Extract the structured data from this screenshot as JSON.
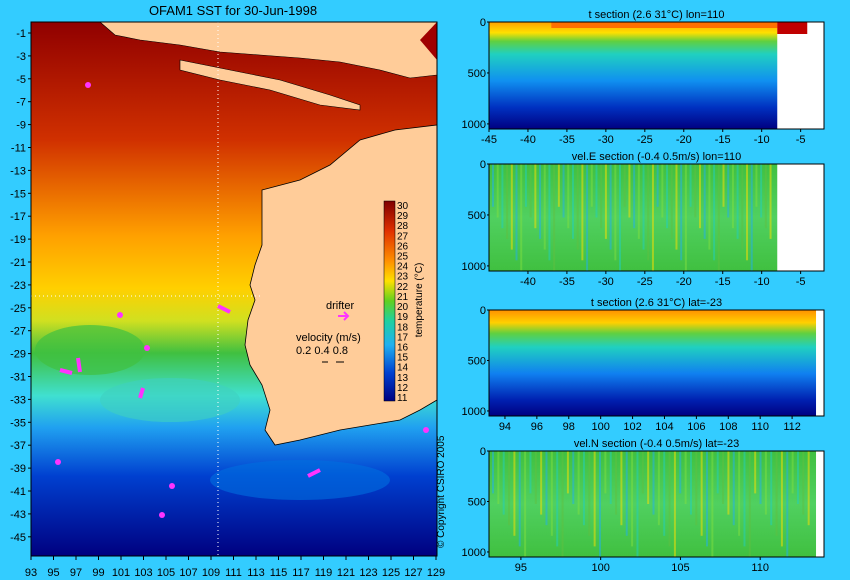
{
  "colors": {
    "background": "#33ccff",
    "land": "#ffcc99",
    "sst_scale": [
      "#000080",
      "#0020c0",
      "#0050e0",
      "#0090f0",
      "#20c0f0",
      "#40e0d0",
      "#40d080",
      "#40c040",
      "#90d020",
      "#e0e020",
      "#ffd000",
      "#ffa000",
      "#ff7000",
      "#e84000",
      "#c02000",
      "#900000"
    ],
    "drifter": "#ff33ff"
  },
  "map": {
    "title": "OFAM1 SST for 30-Jun-1998",
    "lat_ticks": [
      "-1",
      "-3",
      "-5",
      "-7",
      "-9",
      "-11",
      "-13",
      "-15",
      "-17",
      "-19",
      "-21",
      "-23",
      "-25",
      "-27",
      "-29",
      "-31",
      "-33",
      "-35",
      "-37",
      "-39",
      "-41",
      "-43",
      "-45"
    ],
    "lon_ticks": [
      "93",
      "95",
      "97",
      "99",
      "101",
      "103",
      "105",
      "107",
      "109",
      "111",
      "113",
      "115",
      "117",
      "119",
      "121",
      "123",
      "125",
      "127",
      "129"
    ],
    "colorbar_ticks": [
      "30",
      "29",
      "28",
      "27",
      "26",
      "25",
      "24",
      "23",
      "22",
      "21",
      "20",
      "19",
      "18",
      "17",
      "16",
      "15",
      "14",
      "13",
      "12",
      "11"
    ],
    "colorbar_label": "temperature (°C)",
    "drifter_label": "drifter",
    "velocity_label": "velocity (m/s)",
    "velocity_values": "0.2 0.4 0.8",
    "copyright": "© Copyright CSIRO 2005"
  },
  "chart_data": [
    {
      "type": "heatmap",
      "title": "t section (2.6      31°C) lon=110",
      "x": [
        -45,
        -40,
        -35,
        -30,
        -25,
        -20,
        -15,
        -10,
        -5
      ],
      "xlim": [
        -45,
        -2
      ],
      "y_ticks": [
        0,
        500,
        1000
      ],
      "ylim": [
        0,
        1050
      ],
      "colorbar_range": [
        2.6,
        31
      ],
      "data_end_x": -8
    },
    {
      "type": "heatmap",
      "title": "vel.E section (-0.4      0.5m/s) lon=110",
      "x": [
        -40,
        -35,
        -30,
        -25,
        -20,
        -15,
        -10,
        -5
      ],
      "xlim": [
        -45,
        -2
      ],
      "y_ticks": [
        0,
        500,
        1000
      ],
      "ylim": [
        0,
        1050
      ],
      "colorbar_range": [
        -0.4,
        0.5
      ],
      "data_end_x": -8
    },
    {
      "type": "heatmap",
      "title": "t section (2.6      31°C) lat=-23",
      "x": [
        94,
        96,
        98,
        100,
        102,
        104,
        106,
        108,
        110,
        112
      ],
      "xlim": [
        93,
        114
      ],
      "y_ticks": [
        0,
        500,
        1000
      ],
      "ylim": [
        0,
        1050
      ],
      "colorbar_range": [
        2.6,
        31
      ],
      "data_end_x": 113.5
    },
    {
      "type": "heatmap",
      "title": "vel.N section (-0.4      0.5m/s) lat=-23",
      "x": [
        95,
        100,
        105,
        110
      ],
      "xlim": [
        93,
        114
      ],
      "y_ticks": [
        0,
        500,
        1000
      ],
      "ylim": [
        0,
        1050
      ],
      "colorbar_range": [
        -0.4,
        0.5
      ],
      "data_end_x": 113.5
    }
  ]
}
